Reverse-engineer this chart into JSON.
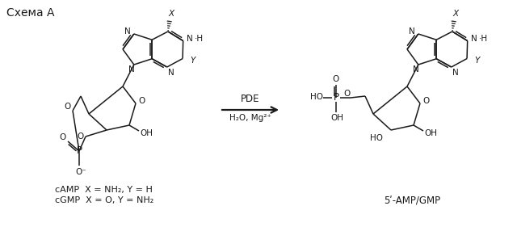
{
  "title": "Схема A",
  "arrow_label_top": "PDE",
  "arrow_label_bottom": "H₂O, Mg²⁺",
  "left_label1": "cAMP  X = NH₂, Y = H",
  "left_label2": "cGMP  X = O, Y = NH₂",
  "right_label": "5ʹ-AMP/GMP",
  "bg_color": "#ffffff",
  "text_color": "#1a1a1a",
  "line_color": "#1a1a1a",
  "font_size": 8.5,
  "title_font_size": 10
}
